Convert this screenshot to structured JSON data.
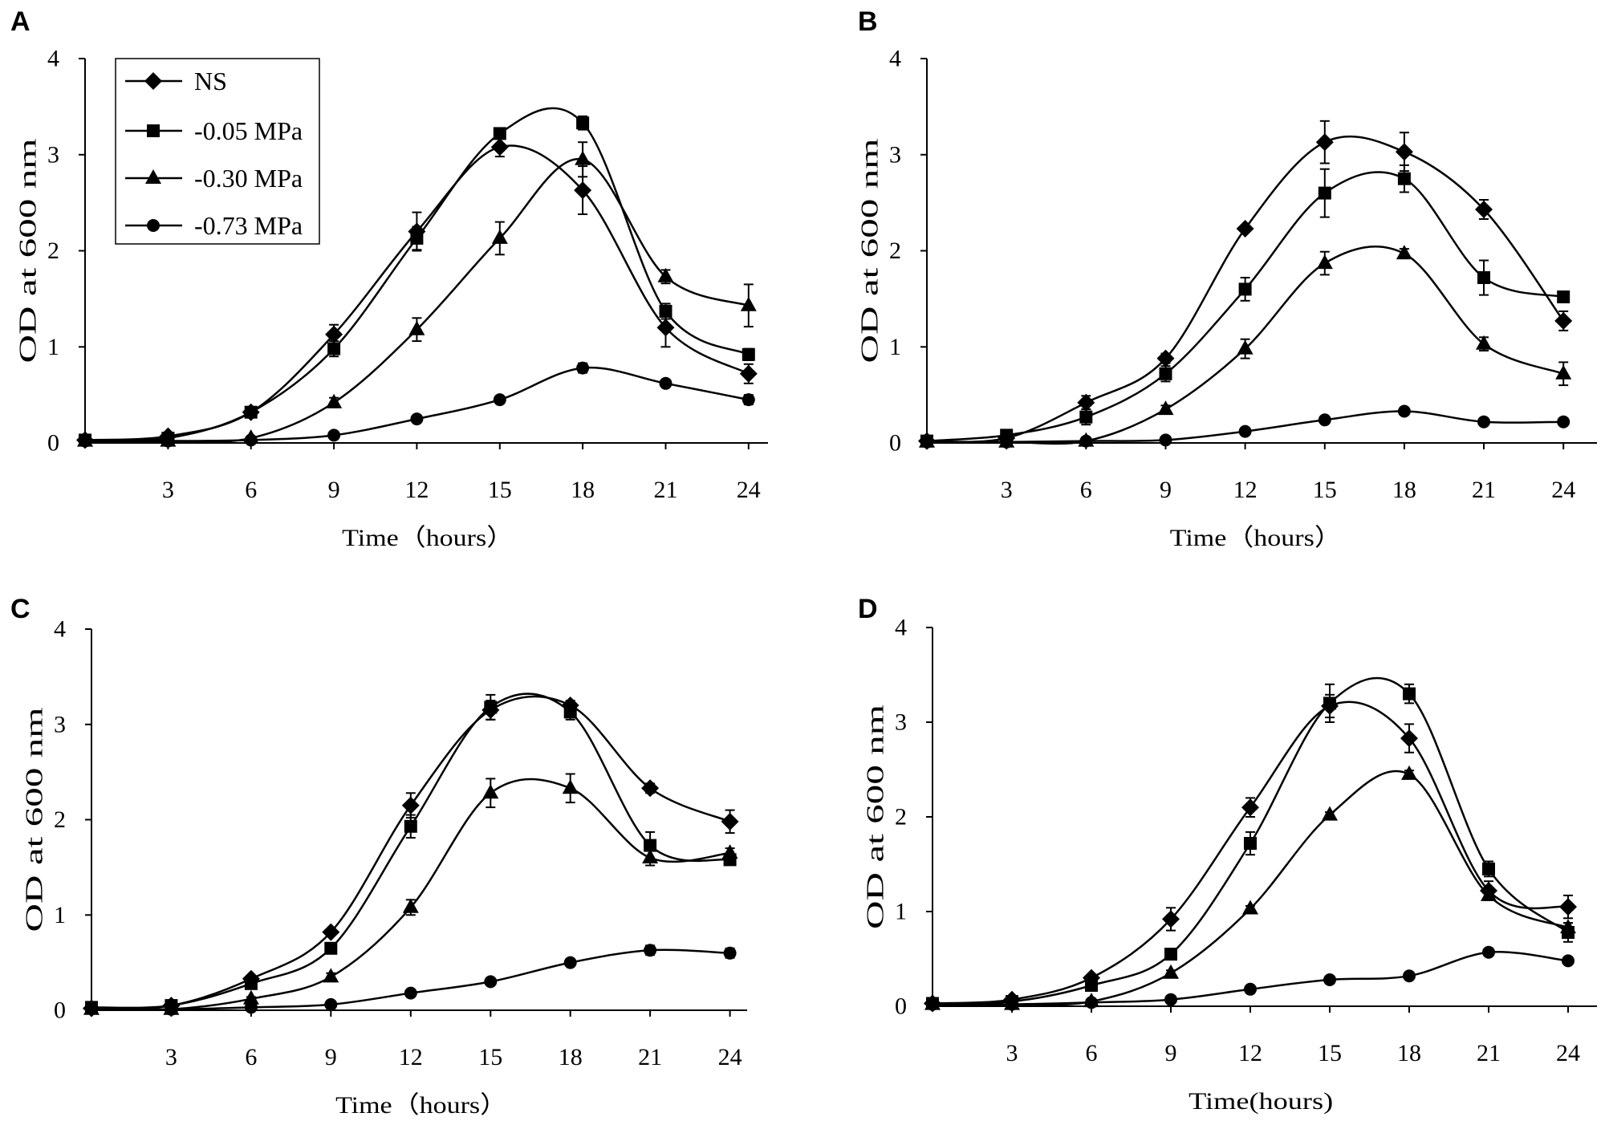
{
  "chart_data": [
    {
      "panel": "A",
      "type": "line",
      "xlabel": "Time（hours）",
      "ylabel": "OD at 600 nm",
      "ylim": [
        0,
        4
      ],
      "yticks": [
        0,
        1,
        2,
        3,
        4
      ],
      "xticks": [
        3,
        6,
        9,
        12,
        15,
        18,
        21,
        24
      ],
      "x": [
        0,
        3,
        6,
        9,
        12,
        15,
        18,
        21,
        24
      ],
      "legend": {
        "position": "top-left"
      },
      "series": [
        {
          "name": "NS",
          "marker": "diamond",
          "values": [
            0.03,
            0.07,
            0.32,
            1.13,
            2.2,
            3.08,
            2.63,
            1.2,
            0.72
          ],
          "errors": [
            0,
            0.02,
            0.03,
            0.1,
            0.2,
            0.1,
            0.25,
            0.2,
            0.1
          ]
        },
        {
          "name": "-0.05 MPa",
          "marker": "square",
          "values": [
            0.03,
            0.05,
            0.32,
            0.98,
            2.13,
            3.22,
            3.33,
            1.37,
            0.92
          ],
          "errors": [
            0,
            0.02,
            0.03,
            0.08,
            0.12,
            0.05,
            0.07,
            0.08,
            0.06
          ]
        },
        {
          "name": "-0.30 MPa",
          "marker": "triangle",
          "values": [
            0.02,
            0.02,
            0.05,
            0.42,
            1.18,
            2.13,
            2.95,
            1.73,
            1.43
          ],
          "errors": [
            0,
            0,
            0.01,
            0.05,
            0.12,
            0.17,
            0.18,
            0.07,
            0.22
          ]
        },
        {
          "name": "-0.73 MPa",
          "marker": "circle",
          "values": [
            0.02,
            0.02,
            0.03,
            0.08,
            0.25,
            0.45,
            0.78,
            0.62,
            0.45
          ],
          "errors": [
            0,
            0,
            0,
            0.01,
            0.02,
            0.03,
            0.05,
            0.03,
            0.05
          ]
        }
      ]
    },
    {
      "panel": "B",
      "type": "line",
      "xlabel": "Time（hours）",
      "ylabel": "OD at 600 nm",
      "ylim": [
        0,
        4
      ],
      "yticks": [
        0,
        1,
        2,
        3,
        4
      ],
      "xticks": [
        3,
        6,
        9,
        12,
        15,
        18,
        21,
        24
      ],
      "x": [
        0,
        3,
        6,
        9,
        12,
        15,
        18,
        21,
        24
      ],
      "series": [
        {
          "name": "NS",
          "marker": "diamond",
          "values": [
            0.02,
            0.05,
            0.42,
            0.88,
            2.23,
            3.13,
            3.03,
            2.43,
            1.27
          ],
          "errors": [
            0,
            0.02,
            0.07,
            0.05,
            0.03,
            0.22,
            0.2,
            0.1,
            0.1
          ]
        },
        {
          "name": "-0.05 MPa",
          "marker": "square",
          "values": [
            0.02,
            0.08,
            0.27,
            0.72,
            1.6,
            2.6,
            2.75,
            1.72,
            1.52
          ],
          "errors": [
            0,
            0.02,
            0.08,
            0.08,
            0.12,
            0.25,
            0.14,
            0.18,
            0.03
          ]
        },
        {
          "name": "-0.30 MPa",
          "marker": "triangle",
          "values": [
            0.01,
            0.01,
            0.02,
            0.35,
            0.98,
            1.87,
            1.97,
            1.03,
            0.72
          ],
          "errors": [
            0,
            0,
            0.01,
            0.04,
            0.1,
            0.12,
            0.05,
            0.07,
            0.12
          ]
        },
        {
          "name": "-0.73 MPa",
          "marker": "circle",
          "values": [
            0.01,
            0.01,
            0.02,
            0.03,
            0.12,
            0.24,
            0.33,
            0.22,
            0.22
          ],
          "errors": [
            0,
            0,
            0,
            0.01,
            0.02,
            0.03,
            0.03,
            0.02,
            0.02
          ]
        }
      ]
    },
    {
      "panel": "C",
      "type": "line",
      "xlabel": "Time（hours）",
      "ylabel": "OD at 600 nm",
      "ylim": [
        0,
        4
      ],
      "yticks": [
        0,
        1,
        2,
        3,
        4
      ],
      "xticks": [
        3,
        6,
        9,
        12,
        15,
        18,
        21,
        24
      ],
      "x": [
        0,
        3,
        6,
        9,
        12,
        15,
        18,
        21,
        24
      ],
      "series": [
        {
          "name": "NS",
          "marker": "diamond",
          "values": [
            0.02,
            0.05,
            0.33,
            0.82,
            2.15,
            3.15,
            3.2,
            2.33,
            1.98
          ],
          "errors": [
            0,
            0.02,
            0.03,
            0.03,
            0.13,
            0.1,
            0.05,
            0.05,
            0.12
          ]
        },
        {
          "name": "-0.05 MPa",
          "marker": "square",
          "values": [
            0.03,
            0.05,
            0.28,
            0.65,
            1.93,
            3.18,
            3.13,
            1.73,
            1.58
          ],
          "errors": [
            0,
            0.02,
            0.03,
            0.05,
            0.12,
            0.13,
            0.08,
            0.14,
            0.05
          ]
        },
        {
          "name": "-0.30 MPa",
          "marker": "triangle",
          "values": [
            0.01,
            0.01,
            0.12,
            0.35,
            1.08,
            2.28,
            2.33,
            1.6,
            1.65
          ],
          "errors": [
            0,
            0,
            0.02,
            0.04,
            0.08,
            0.15,
            0.15,
            0.08,
            0.05
          ]
        },
        {
          "name": "-0.73 MPa",
          "marker": "circle",
          "values": [
            0.02,
            0.01,
            0.03,
            0.06,
            0.18,
            0.3,
            0.5,
            0.63,
            0.6
          ],
          "errors": [
            0,
            0,
            0,
            0.01,
            0.02,
            0.02,
            0.03,
            0.05,
            0.05
          ]
        }
      ]
    },
    {
      "panel": "D",
      "type": "line",
      "xlabel": "Time(hours)",
      "ylabel": "OD at 600 nm",
      "ylim": [
        0,
        4
      ],
      "yticks": [
        0,
        1,
        2,
        3,
        4
      ],
      "xticks": [
        3,
        6,
        9,
        12,
        15,
        18,
        21,
        24
      ],
      "x": [
        0,
        3,
        6,
        9,
        12,
        15,
        18,
        21,
        24
      ],
      "series": [
        {
          "name": "NS",
          "marker": "diamond",
          "values": [
            0.03,
            0.07,
            0.3,
            0.92,
            2.1,
            3.17,
            2.83,
            1.22,
            1.05
          ],
          "errors": [
            0,
            0.02,
            0.03,
            0.12,
            0.1,
            0.12,
            0.15,
            0.1,
            0.12
          ]
        },
        {
          "name": "-0.05 MPa",
          "marker": "square",
          "values": [
            0.03,
            0.05,
            0.22,
            0.55,
            1.72,
            3.2,
            3.3,
            1.45,
            0.78
          ],
          "errors": [
            0,
            0.02,
            0.03,
            0.05,
            0.12,
            0.2,
            0.1,
            0.08,
            0.1
          ]
        },
        {
          "name": "-0.30 MPa",
          "marker": "triangle",
          "values": [
            0.02,
            0.02,
            0.05,
            0.35,
            1.03,
            2.02,
            2.45,
            1.17,
            0.83
          ],
          "errors": [
            0,
            0,
            0.01,
            0.03,
            0.03,
            0.03,
            0.04,
            0.04,
            0.05
          ]
        },
        {
          "name": "-0.73 MPa",
          "marker": "circle",
          "values": [
            0.02,
            0.02,
            0.04,
            0.07,
            0.18,
            0.28,
            0.32,
            0.57,
            0.48
          ],
          "errors": [
            0,
            0,
            0,
            0,
            0.01,
            0.02,
            0.02,
            0.02,
            0.02
          ]
        }
      ]
    }
  ]
}
